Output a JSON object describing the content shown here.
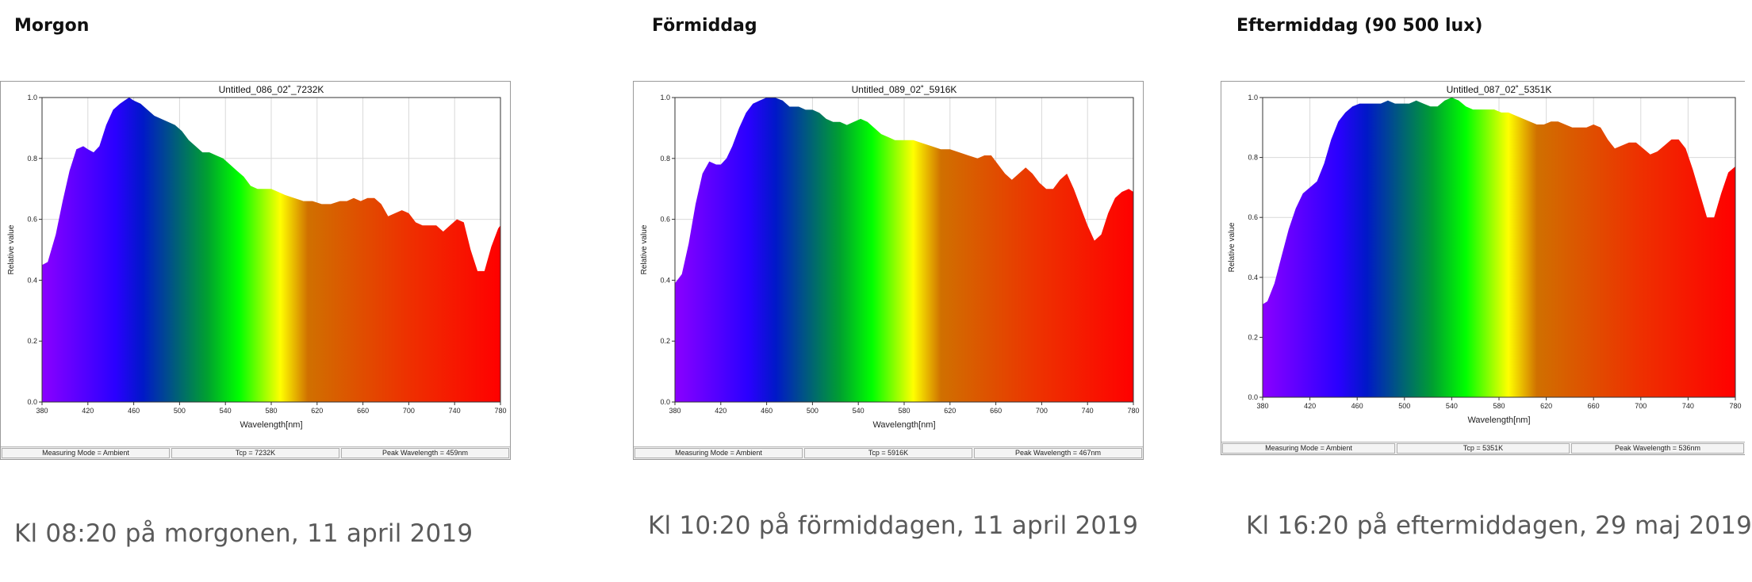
{
  "panels": [
    {
      "heading": "Morgon",
      "caption": "Kl 08:20 på morgonen, 11 april 2019",
      "chart_data": {
        "type": "area",
        "title": "Untitled_086_02˚_7232K",
        "xlabel": "Wavelength[nm]",
        "ylabel": "Relative value",
        "xlim": [
          380,
          780
        ],
        "ylim": [
          0,
          1.0
        ],
        "x_ticks": [
          380,
          420,
          460,
          500,
          540,
          580,
          620,
          660,
          700,
          740,
          780
        ],
        "y_ticks": [
          0.0,
          0.2,
          0.4,
          0.6,
          0.8,
          1.0
        ],
        "grid": true,
        "series": [
          {
            "x": [
              380,
              385,
              392,
              398,
              404,
              410,
              416,
              420,
              425,
              430,
              436,
              442,
              448,
              452,
              456,
              460,
              466,
              472,
              478,
              484,
              490,
              496,
              502,
              508,
              514,
              520,
              526,
              532,
              538,
              544,
              550,
              556,
              562,
              568,
              574,
              580,
              586,
              592,
              600,
              608,
              616,
              624,
              632,
              640,
              646,
              652,
              658,
              664,
              670,
              676,
              682,
              688,
              694,
              700,
              706,
              712,
              718,
              724,
              730,
              736,
              742,
              748,
              754,
              760,
              766,
              772,
              778,
              780
            ],
            "y": [
              0.45,
              0.46,
              0.55,
              0.66,
              0.76,
              0.83,
              0.84,
              0.83,
              0.82,
              0.84,
              0.91,
              0.96,
              0.98,
              0.99,
              1.0,
              0.99,
              0.98,
              0.96,
              0.94,
              0.93,
              0.92,
              0.91,
              0.89,
              0.86,
              0.84,
              0.82,
              0.82,
              0.81,
              0.8,
              0.78,
              0.76,
              0.74,
              0.71,
              0.7,
              0.7,
              0.7,
              0.69,
              0.68,
              0.67,
              0.66,
              0.66,
              0.65,
              0.65,
              0.66,
              0.66,
              0.67,
              0.66,
              0.67,
              0.67,
              0.65,
              0.61,
              0.62,
              0.63,
              0.62,
              0.59,
              0.58,
              0.58,
              0.58,
              0.56,
              0.58,
              0.6,
              0.59,
              0.5,
              0.43,
              0.43,
              0.51,
              0.57,
              0.58
            ]
          }
        ]
      },
      "status": [
        "Measuring Mode = Ambient",
        "Tcp = 7232K",
        "Peak Wavelength = 459nm"
      ]
    },
    {
      "heading": "Förmiddag",
      "caption": "Kl 10:20 på förmiddagen, 11 april 2019",
      "chart_data": {
        "type": "area",
        "title": "Untitled_089_02˚_5916K",
        "xlabel": "Wavelength[nm]",
        "ylabel": "Relative value",
        "xlim": [
          380,
          780
        ],
        "ylim": [
          0,
          1.0
        ],
        "x_ticks": [
          380,
          420,
          460,
          500,
          540,
          580,
          620,
          660,
          700,
          740,
          780
        ],
        "y_ticks": [
          0.0,
          0.2,
          0.4,
          0.6,
          0.8,
          1.0
        ],
        "grid": true,
        "series": [
          {
            "x": [
              380,
              386,
              392,
              398,
              404,
              410,
              416,
              420,
              425,
              430,
              436,
              442,
              448,
              454,
              460,
              467,
              474,
              480,
              488,
              494,
              500,
              506,
              512,
              518,
              524,
              530,
              536,
              542,
              548,
              554,
              560,
              566,
              572,
              580,
              588,
              596,
              604,
              612,
              620,
              628,
              636,
              644,
              650,
              656,
              662,
              668,
              674,
              680,
              686,
              692,
              698,
              704,
              710,
              716,
              722,
              728,
              734,
              740,
              746,
              752,
              758,
              764,
              770,
              776,
              780
            ],
            "y": [
              0.39,
              0.42,
              0.52,
              0.65,
              0.75,
              0.79,
              0.78,
              0.78,
              0.8,
              0.84,
              0.9,
              0.95,
              0.98,
              0.99,
              1.0,
              1.0,
              0.99,
              0.97,
              0.97,
              0.96,
              0.96,
              0.95,
              0.93,
              0.92,
              0.92,
              0.91,
              0.92,
              0.93,
              0.92,
              0.9,
              0.88,
              0.87,
              0.86,
              0.86,
              0.86,
              0.85,
              0.84,
              0.83,
              0.83,
              0.82,
              0.81,
              0.8,
              0.81,
              0.81,
              0.78,
              0.75,
              0.73,
              0.75,
              0.77,
              0.75,
              0.72,
              0.7,
              0.7,
              0.73,
              0.75,
              0.7,
              0.64,
              0.58,
              0.53,
              0.55,
              0.62,
              0.67,
              0.69,
              0.7,
              0.69
            ]
          }
        ]
      },
      "status": [
        "Measuring Mode = Ambient",
        "Tcp = 5916K",
        "Peak Wavelength = 467nm"
      ]
    },
    {
      "heading": "Eftermiddag (90 500 lux)",
      "caption": "Kl 16:20 på eftermiddagen, 29 maj 2019",
      "chart_data": {
        "type": "area",
        "title": "Untitled_087_02˚_5351K",
        "xlabel": "Wavelength[nm]",
        "ylabel": "Relative value",
        "xlim": [
          380,
          780
        ],
        "ylim": [
          0,
          1.0
        ],
        "x_ticks": [
          380,
          420,
          460,
          500,
          540,
          580,
          620,
          660,
          700,
          740,
          780
        ],
        "y_ticks": [
          0.0,
          0.2,
          0.4,
          0.6,
          0.8,
          1.0
        ],
        "grid": true,
        "series": [
          {
            "x": [
              380,
              384,
              390,
              396,
              402,
              408,
              414,
              420,
              426,
              432,
              438,
              444,
              450,
              456,
              462,
              468,
              474,
              480,
              486,
              492,
              498,
              504,
              510,
              516,
              522,
              528,
              534,
              540,
              546,
              552,
              558,
              564,
              570,
              576,
              582,
              588,
              594,
              600,
              606,
              612,
              618,
              624,
              630,
              636,
              642,
              648,
              654,
              660,
              666,
              672,
              678,
              684,
              690,
              696,
              702,
              708,
              714,
              720,
              726,
              732,
              738,
              744,
              750,
              756,
              762,
              768,
              774,
              780
            ],
            "y": [
              0.31,
              0.32,
              0.38,
              0.47,
              0.56,
              0.63,
              0.68,
              0.7,
              0.72,
              0.78,
              0.86,
              0.92,
              0.95,
              0.97,
              0.98,
              0.98,
              0.98,
              0.98,
              0.99,
              0.98,
              0.98,
              0.98,
              0.99,
              0.98,
              0.97,
              0.97,
              0.99,
              1.0,
              0.99,
              0.97,
              0.96,
              0.96,
              0.96,
              0.96,
              0.95,
              0.95,
              0.94,
              0.93,
              0.92,
              0.91,
              0.91,
              0.92,
              0.92,
              0.91,
              0.9,
              0.9,
              0.9,
              0.91,
              0.9,
              0.86,
              0.83,
              0.84,
              0.85,
              0.85,
              0.83,
              0.81,
              0.82,
              0.84,
              0.86,
              0.86,
              0.83,
              0.76,
              0.68,
              0.6,
              0.6,
              0.68,
              0.75,
              0.77
            ]
          }
        ]
      },
      "status": [
        "Measuring Mode = Ambient",
        "Tcp = 5351K",
        "Peak Wavelength = 536nm"
      ]
    }
  ],
  "colors": {
    "spectrum": [
      "#8b00ff",
      "#2a00ff",
      "#0018c8",
      "#00a030",
      "#00ff00",
      "#ffff00",
      "#d07000",
      "#ee3000",
      "#ff0000"
    ]
  }
}
